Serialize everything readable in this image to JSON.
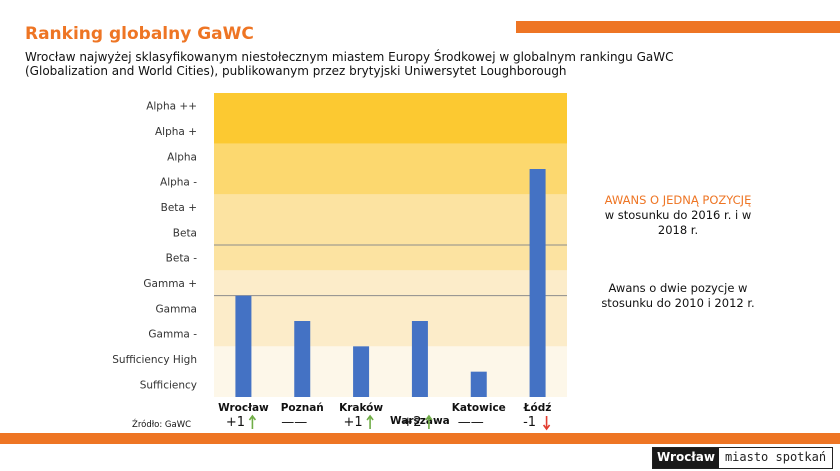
{
  "page": {
    "title": "Ranking globalny GaWC",
    "subtitle": "Wrocław najwyżej sklasyfikowanym niestołecznym miastem Europy Środkowej w globalnym rankingu GaWC (Globalization and World Cities), publikowanym przez brytyjski Uniwersytet Loughborough",
    "source": "Źródło: GaWC",
    "note1_orange": "AWANS  O JEDNĄ POZYCJĘ",
    "note1_rest": "w stosunku do 2016 r. i w 2018 r.",
    "note2": "Awans o dwie pozycje w stosunku do 2010 i 2012 r.",
    "logo_left": "Wrocław",
    "logo_right": "miasto spotkań"
  },
  "colors": {
    "accent": "#ee7524",
    "bar": "#4472c4",
    "up_arrow": "#70ad47",
    "down_arrow": "#e23b2e",
    "bands": [
      "#fdf7e9",
      "#fcecc9",
      "#fce3a1",
      "#fcd86f",
      "#fcc931"
    ]
  },
  "chart_data": {
    "type": "bar",
    "levels": [
      "Sufficiency",
      "Sufficiency High",
      "Gamma -",
      "Gamma",
      "Gamma +",
      "Beta -",
      "Beta",
      "Beta +",
      "Alpha -",
      "Alpha",
      "Alpha +",
      "Alpha ++"
    ],
    "categories": [
      "Wrocław",
      "Poznań",
      "Kraków",
      "Warszawa",
      "Katowice",
      "Łódź"
    ],
    "values": [
      4,
      3,
      2,
      3,
      1,
      9
    ],
    "changes": [
      "+1",
      "——",
      "+1",
      "+2",
      "——",
      "-1"
    ],
    "change_direction": [
      "up",
      "none",
      "up",
      "up",
      "none",
      "down"
    ],
    "bands": [
      {
        "from": 0,
        "to": 2
      },
      {
        "from": 2,
        "to": 5
      },
      {
        "from": 5,
        "to": 8
      },
      {
        "from": 8,
        "to": 10
      },
      {
        "from": 10,
        "to": 12
      }
    ],
    "line_levels": [
      4,
      6
    ]
  }
}
